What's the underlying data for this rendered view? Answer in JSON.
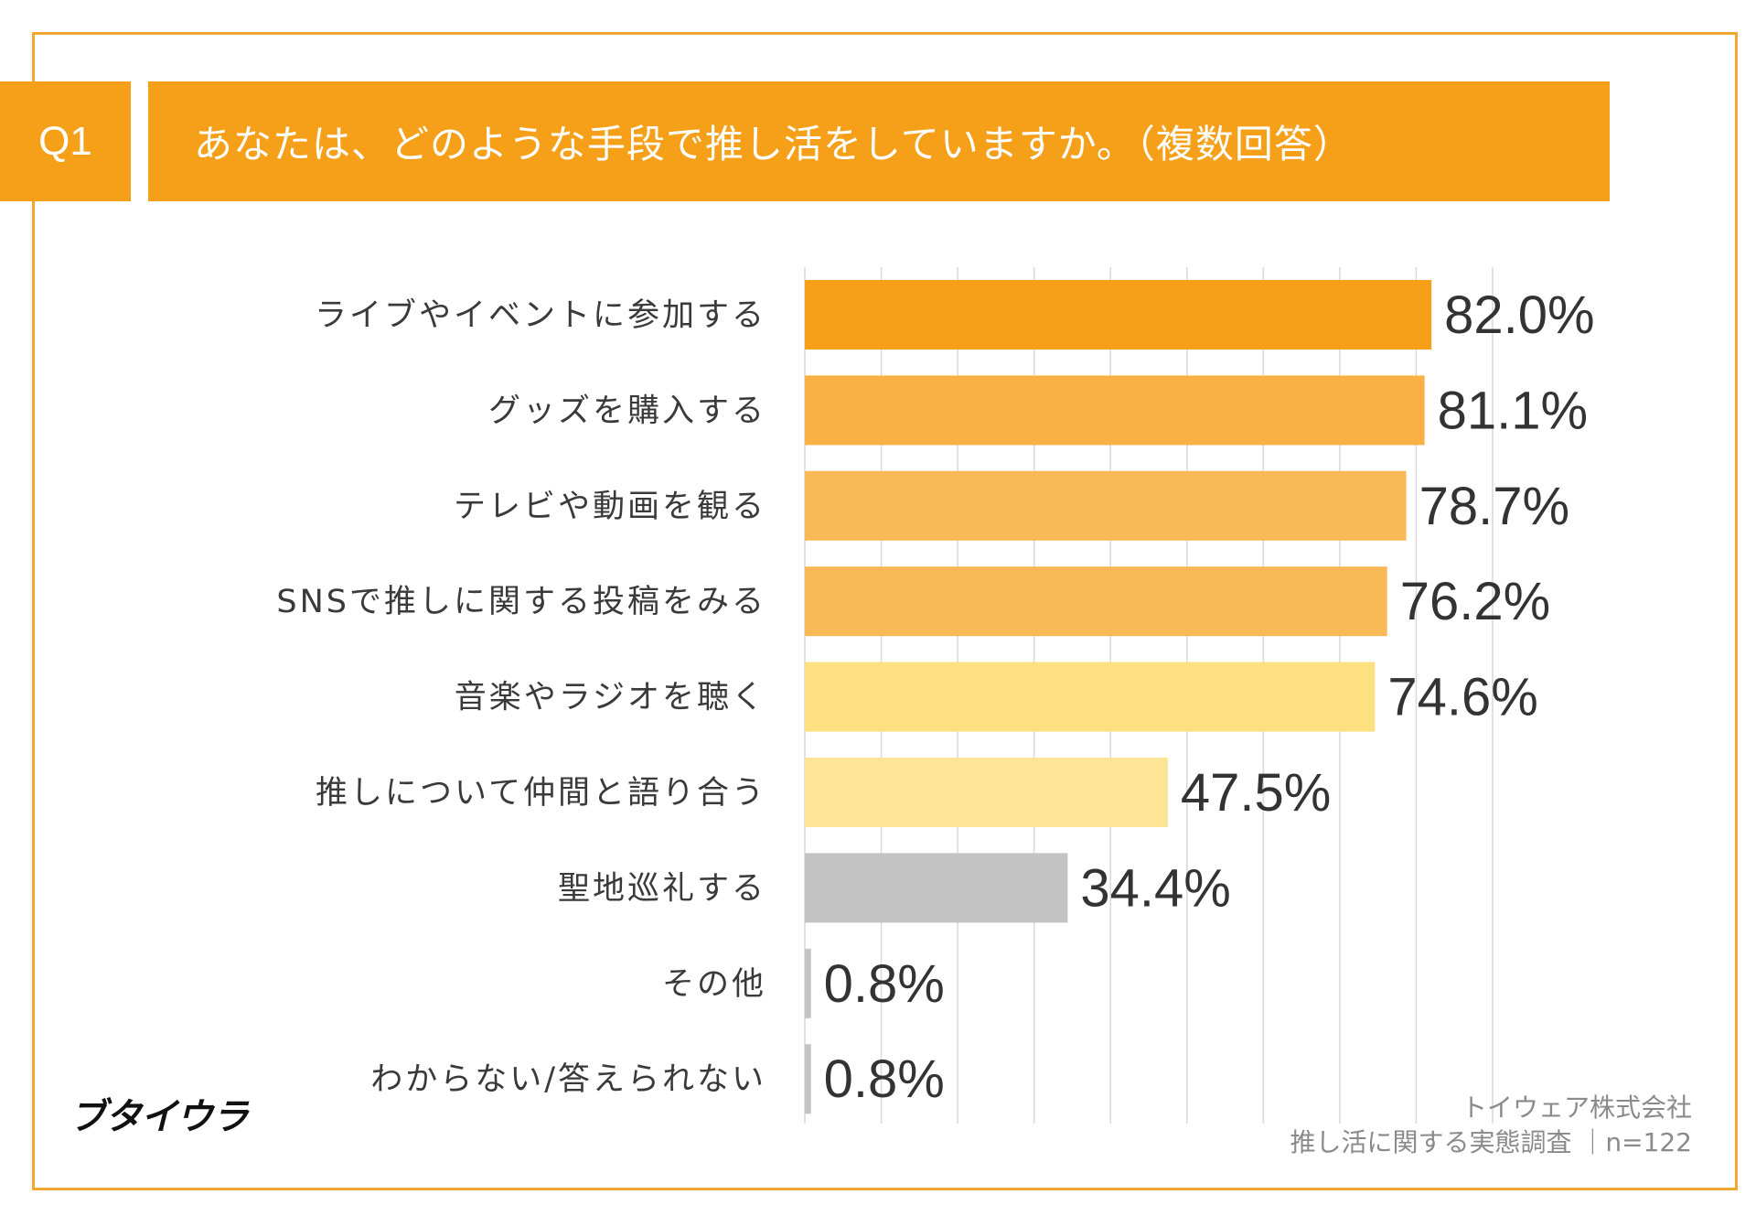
{
  "question": {
    "number": "Q1",
    "title": "あなたは、どのような手段で推し活をしていますか。（複数回答）"
  },
  "logo": "ブタイウラ",
  "footnote": {
    "company": "トイウェア株式会社",
    "survey": "推し活に関する実態調査 ｜n=122"
  },
  "colors": {
    "accent": "#f6a019",
    "frame": "#f0a830"
  },
  "chart_data": {
    "type": "bar",
    "orientation": "horizontal",
    "title": "あなたは、どのような手段で推し活をしていますか。（複数回答）",
    "xlabel": "",
    "ylabel": "",
    "xlim": [
      0,
      90
    ],
    "grid": true,
    "unit": "%",
    "categories": [
      "ライブやイベントに参加する",
      "グッズを購入する",
      "テレビや動画を観る",
      "SNSで推しに関する投稿をみる",
      "音楽やラジオを聴く",
      "推しについて仲間と語り合う",
      "聖地巡礼する",
      "その他",
      "わからない/答えられない"
    ],
    "values": [
      82.0,
      81.1,
      78.7,
      76.2,
      74.6,
      47.5,
      34.4,
      0.8,
      0.8
    ],
    "value_labels": [
      "82.0%",
      "81.1%",
      "78.7%",
      "76.2%",
      "74.6%",
      "47.5%",
      "34.4%",
      "0.8%",
      "0.8%"
    ],
    "bar_colors": [
      "#f6a019",
      "#f9b044",
      "#fab957",
      "#fab957",
      "#fde080",
      "#fde595",
      "#c3c3c3",
      "#c3c3c3",
      "#c3c3c3"
    ]
  }
}
